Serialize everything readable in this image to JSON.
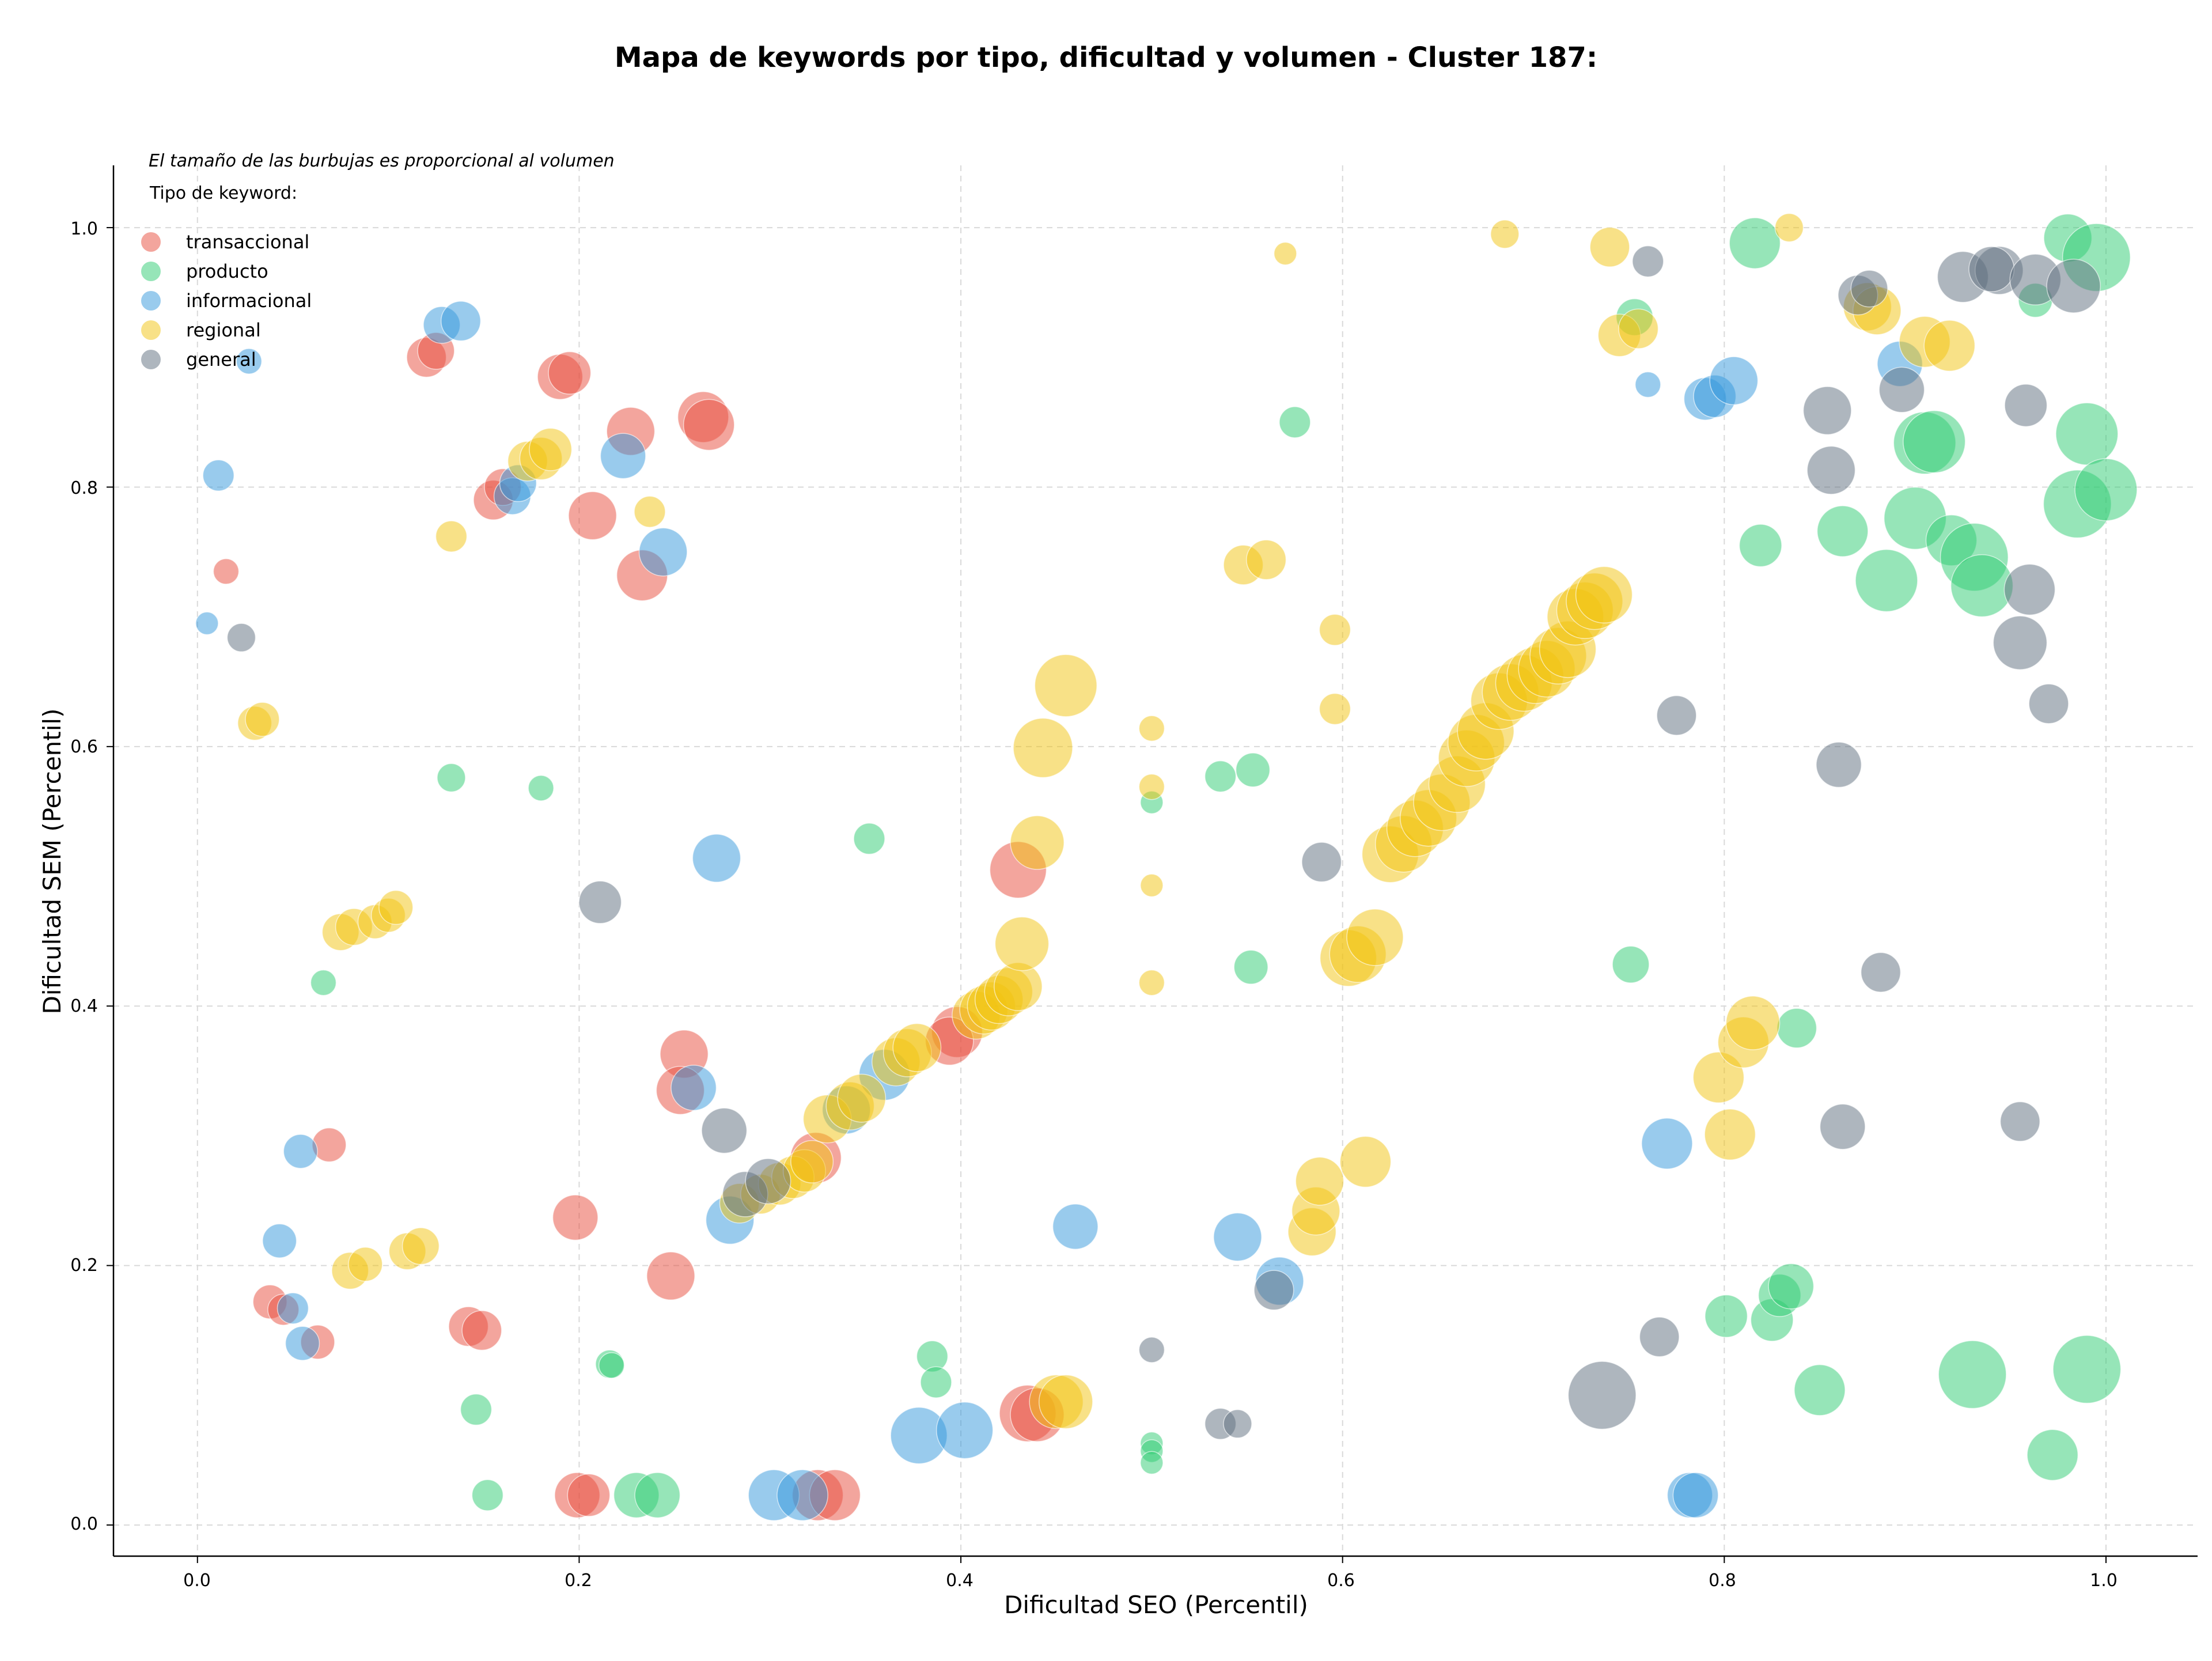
{
  "chart_data": {
    "type": "scatter",
    "title": "Mapa de keywords por tipo, dificultad y volumen - Cluster 187:",
    "subtitle": "El tamaño de las burbujas es proporcional al volumen",
    "xlabel": "Dificultad SEO (Percentil)",
    "ylabel": "Dificultad SEM (Percentil)",
    "xlim": [
      -0.044,
      1.048
    ],
    "ylim": [
      -0.024,
      1.048
    ],
    "xticks": [
      "0.0",
      "0.2",
      "0.4",
      "0.6",
      "0.8",
      "1.0"
    ],
    "yticks": [
      "0.0",
      "0.2",
      "0.4",
      "0.6",
      "0.8",
      "1.0"
    ],
    "grid": true,
    "legend_title": "Tipo de keyword:",
    "legend_position": "top-left",
    "colors": {
      "transaccional": "#e74c3c",
      "producto": "#2ecc71",
      "informacional": "#3498db",
      "regional": "#f1c40f",
      "general": "#5d6d7e"
    },
    "series": [
      {
        "name": "transaccional",
        "points": [
          [
            0.015,
            0.735,
            9
          ],
          [
            0.12,
            0.9,
            14
          ],
          [
            0.125,
            0.905,
            13
          ],
          [
            0.19,
            0.885,
            16
          ],
          [
            0.195,
            0.888,
            15
          ],
          [
            0.155,
            0.79,
            14
          ],
          [
            0.16,
            0.8,
            13
          ],
          [
            0.207,
            0.778,
            17
          ],
          [
            0.227,
            0.843,
            17
          ],
          [
            0.233,
            0.732,
            18
          ],
          [
            0.265,
            0.854,
            18
          ],
          [
            0.268,
            0.848,
            18
          ],
          [
            0.038,
            0.172,
            12
          ],
          [
            0.045,
            0.166,
            11
          ],
          [
            0.063,
            0.141,
            12
          ],
          [
            0.069,
            0.293,
            12
          ],
          [
            0.142,
            0.153,
            14
          ],
          [
            0.149,
            0.15,
            14
          ],
          [
            0.198,
            0.237,
            16
          ],
          [
            0.248,
            0.192,
            17
          ],
          [
            0.255,
            0.363,
            17
          ],
          [
            0.253,
            0.335,
            17
          ],
          [
            0.199,
            0.023,
            16
          ],
          [
            0.205,
            0.023,
            15
          ],
          [
            0.324,
            0.283,
            18
          ],
          [
            0.325,
            0.023,
            18
          ],
          [
            0.334,
            0.023,
            18
          ],
          [
            0.398,
            0.38,
            18
          ],
          [
            0.394,
            0.373,
            17
          ],
          [
            0.43,
            0.505,
            20
          ],
          [
            0.435,
            0.086,
            20
          ],
          [
            0.44,
            0.085,
            19
          ]
        ]
      },
      {
        "name": "producto",
        "points": [
          [
            0.133,
            0.576,
            10
          ],
          [
            0.18,
            0.568,
            9
          ],
          [
            0.066,
            0.418,
            9
          ],
          [
            0.146,
            0.089,
            11
          ],
          [
            0.152,
            0.023,
            11
          ],
          [
            0.216,
            0.124,
            10
          ],
          [
            0.217,
            0.123,
            9
          ],
          [
            0.23,
            0.023,
            16
          ],
          [
            0.241,
            0.023,
            16
          ],
          [
            0.352,
            0.529,
            11
          ],
          [
            0.385,
            0.13,
            11
          ],
          [
            0.387,
            0.11,
            11
          ],
          [
            0.5,
            0.557,
            8
          ],
          [
            0.5,
            0.063,
            8
          ],
          [
            0.5,
            0.057,
            8
          ],
          [
            0.5,
            0.048,
            8
          ],
          [
            0.536,
            0.577,
            11
          ],
          [
            0.553,
            0.582,
            12
          ],
          [
            0.552,
            0.43,
            12
          ],
          [
            0.575,
            0.85,
            11
          ],
          [
            0.751,
            0.432,
            13
          ],
          [
            0.753,
            0.931,
            13
          ],
          [
            0.816,
            0.988,
            18
          ],
          [
            0.819,
            0.755,
            15
          ],
          [
            0.801,
            0.161,
            15
          ],
          [
            0.825,
            0.158,
            15
          ],
          [
            0.829,
            0.177,
            15
          ],
          [
            0.835,
            0.184,
            16
          ],
          [
            0.838,
            0.383,
            14
          ],
          [
            0.85,
            0.104,
            18
          ],
          [
            0.862,
            0.766,
            18
          ],
          [
            0.885,
            0.728,
            22
          ],
          [
            0.9,
            0.776,
            22
          ],
          [
            0.905,
            0.834,
            22
          ],
          [
            0.91,
            0.835,
            22
          ],
          [
            0.919,
            0.759,
            18
          ],
          [
            0.93,
            0.116,
            24
          ],
          [
            0.931,
            0.746,
            24
          ],
          [
            0.935,
            0.724,
            22
          ],
          [
            0.963,
            0.944,
            12
          ],
          [
            0.972,
            0.054,
            18
          ],
          [
            0.98,
            0.992,
            17
          ],
          [
            0.985,
            0.787,
            24
          ],
          [
            0.99,
            0.12,
            24
          ],
          [
            0.99,
            0.841,
            22
          ],
          [
            0.995,
            0.977,
            24
          ],
          [
            1.0,
            0.798,
            22
          ]
        ]
      },
      {
        "name": "informacional",
        "points": [
          [
            0.005,
            0.695,
            8
          ],
          [
            0.011,
            0.809,
            11
          ],
          [
            0.027,
            0.897,
            9
          ],
          [
            0.128,
            0.925,
            13
          ],
          [
            0.138,
            0.928,
            14
          ],
          [
            0.165,
            0.793,
            13
          ],
          [
            0.168,
            0.803,
            13
          ],
          [
            0.223,
            0.824,
            16
          ],
          [
            0.244,
            0.75,
            17
          ],
          [
            0.272,
            0.514,
            17
          ],
          [
            0.043,
            0.219,
            12
          ],
          [
            0.05,
            0.167,
            11
          ],
          [
            0.054,
            0.288,
            12
          ],
          [
            0.055,
            0.14,
            12
          ],
          [
            0.26,
            0.337,
            16
          ],
          [
            0.279,
            0.235,
            17
          ],
          [
            0.302,
            0.023,
            18
          ],
          [
            0.317,
            0.023,
            18
          ],
          [
            0.34,
            0.32,
            17
          ],
          [
            0.36,
            0.347,
            18
          ],
          [
            0.378,
            0.069,
            20
          ],
          [
            0.402,
            0.073,
            20
          ],
          [
            0.46,
            0.23,
            16
          ],
          [
            0.545,
            0.222,
            17
          ],
          [
            0.567,
            0.188,
            17
          ],
          [
            0.76,
            0.879,
            9
          ],
          [
            0.77,
            0.294,
            18
          ],
          [
            0.782,
            0.023,
            16
          ],
          [
            0.785,
            0.023,
            16
          ],
          [
            0.79,
            0.868,
            15
          ],
          [
            0.795,
            0.87,
            15
          ],
          [
            0.805,
            0.882,
            17
          ],
          [
            0.892,
            0.895,
            16
          ]
        ]
      },
      {
        "name": "regional",
        "points": [
          [
            0.03,
            0.618,
            12
          ],
          [
            0.034,
            0.621,
            12
          ],
          [
            0.133,
            0.762,
            11
          ],
          [
            0.173,
            0.82,
            14
          ],
          [
            0.18,
            0.822,
            15
          ],
          [
            0.185,
            0.829,
            15
          ],
          [
            0.237,
            0.781,
            11
          ],
          [
            0.075,
            0.457,
            13
          ],
          [
            0.082,
            0.461,
            13
          ],
          [
            0.093,
            0.465,
            12
          ],
          [
            0.1,
            0.47,
            12
          ],
          [
            0.104,
            0.476,
            12
          ],
          [
            0.08,
            0.196,
            13
          ],
          [
            0.088,
            0.201,
            12
          ],
          [
            0.11,
            0.211,
            13
          ],
          [
            0.117,
            0.215,
            13
          ],
          [
            0.284,
            0.248,
            14
          ],
          [
            0.295,
            0.255,
            14
          ],
          [
            0.305,
            0.263,
            15
          ],
          [
            0.312,
            0.268,
            15
          ],
          [
            0.318,
            0.273,
            15
          ],
          [
            0.322,
            0.28,
            15
          ],
          [
            0.33,
            0.313,
            17
          ],
          [
            0.342,
            0.323,
            17
          ],
          [
            0.348,
            0.329,
            17
          ],
          [
            0.366,
            0.357,
            17
          ],
          [
            0.372,
            0.364,
            17
          ],
          [
            0.377,
            0.368,
            17
          ],
          [
            0.408,
            0.393,
            17
          ],
          [
            0.412,
            0.397,
            17
          ],
          [
            0.416,
            0.4,
            17
          ],
          [
            0.42,
            0.405,
            17
          ],
          [
            0.425,
            0.411,
            17
          ],
          [
            0.43,
            0.415,
            17
          ],
          [
            0.432,
            0.448,
            19
          ],
          [
            0.44,
            0.526,
            19
          ],
          [
            0.443,
            0.599,
            21
          ],
          [
            0.455,
            0.647,
            22
          ],
          [
            0.45,
            0.095,
            19
          ],
          [
            0.455,
            0.095,
            19
          ],
          [
            0.5,
            0.614,
            9
          ],
          [
            0.5,
            0.569,
            9
          ],
          [
            0.5,
            0.493,
            8
          ],
          [
            0.5,
            0.418,
            9
          ],
          [
            0.548,
            0.74,
            14
          ],
          [
            0.56,
            0.744,
            14
          ],
          [
            0.57,
            0.98,
            8
          ],
          [
            0.584,
            0.226,
            17
          ],
          [
            0.586,
            0.242,
            17
          ],
          [
            0.588,
            0.265,
            17
          ],
          [
            0.596,
            0.69,
            11
          ],
          [
            0.596,
            0.629,
            11
          ],
          [
            0.603,
            0.437,
            20
          ],
          [
            0.608,
            0.44,
            20
          ],
          [
            0.612,
            0.28,
            18
          ],
          [
            0.617,
            0.453,
            20
          ],
          [
            0.625,
            0.517,
            20
          ],
          [
            0.632,
            0.525,
            20
          ],
          [
            0.638,
            0.537,
            20
          ],
          [
            0.645,
            0.545,
            20
          ],
          [
            0.652,
            0.557,
            20
          ],
          [
            0.66,
            0.571,
            20
          ],
          [
            0.665,
            0.591,
            20
          ],
          [
            0.67,
            0.603,
            20
          ],
          [
            0.675,
            0.612,
            20
          ],
          [
            0.682,
            0.635,
            20
          ],
          [
            0.688,
            0.642,
            20
          ],
          [
            0.695,
            0.649,
            20
          ],
          [
            0.701,
            0.655,
            20
          ],
          [
            0.707,
            0.66,
            20
          ],
          [
            0.713,
            0.67,
            20
          ],
          [
            0.718,
            0.675,
            20
          ],
          [
            0.722,
            0.7,
            20
          ],
          [
            0.727,
            0.705,
            20
          ],
          [
            0.732,
            0.712,
            20
          ],
          [
            0.737,
            0.717,
            20
          ],
          [
            0.685,
            0.995,
            10
          ],
          [
            0.74,
            0.985,
            14
          ],
          [
            0.745,
            0.917,
            15
          ],
          [
            0.755,
            0.922,
            14
          ],
          [
            0.797,
            0.345,
            18
          ],
          [
            0.803,
            0.301,
            18
          ],
          [
            0.81,
            0.372,
            18
          ],
          [
            0.815,
            0.387,
            19
          ],
          [
            0.834,
            1.0,
            10
          ],
          [
            0.875,
            0.939,
            17
          ],
          [
            0.88,
            0.936,
            17
          ],
          [
            0.905,
            0.912,
            18
          ],
          [
            0.918,
            0.909,
            18
          ]
        ]
      },
      {
        "name": "general",
        "points": [
          [
            0.023,
            0.684,
            10
          ],
          [
            0.211,
            0.48,
            15
          ],
          [
            0.276,
            0.304,
            16
          ],
          [
            0.287,
            0.255,
            16
          ],
          [
            0.299,
            0.265,
            16
          ],
          [
            0.5,
            0.135,
            9
          ],
          [
            0.536,
            0.078,
            11
          ],
          [
            0.545,
            0.078,
            10
          ],
          [
            0.564,
            0.181,
            14
          ],
          [
            0.589,
            0.511,
            14
          ],
          [
            0.736,
            0.1,
            24
          ],
          [
            0.76,
            0.974,
            11
          ],
          [
            0.766,
            0.145,
            14
          ],
          [
            0.775,
            0.624,
            14
          ],
          [
            0.854,
            0.859,
            17
          ],
          [
            0.856,
            0.813,
            17
          ],
          [
            0.86,
            0.586,
            16
          ],
          [
            0.862,
            0.307,
            16
          ],
          [
            0.87,
            0.948,
            14
          ],
          [
            0.876,
            0.953,
            13
          ],
          [
            0.882,
            0.426,
            14
          ],
          [
            0.893,
            0.875,
            16
          ],
          [
            0.925,
            0.962,
            18
          ],
          [
            0.944,
            0.967,
            17
          ],
          [
            0.94,
            0.968,
            16
          ],
          [
            0.955,
            0.311,
            14
          ],
          [
            0.958,
            0.863,
            15
          ],
          [
            0.963,
            0.96,
            18
          ],
          [
            0.955,
            0.68,
            19
          ],
          [
            0.96,
            0.721,
            18
          ],
          [
            0.97,
            0.633,
            14
          ],
          [
            0.983,
            0.955,
            19
          ]
        ]
      }
    ]
  }
}
